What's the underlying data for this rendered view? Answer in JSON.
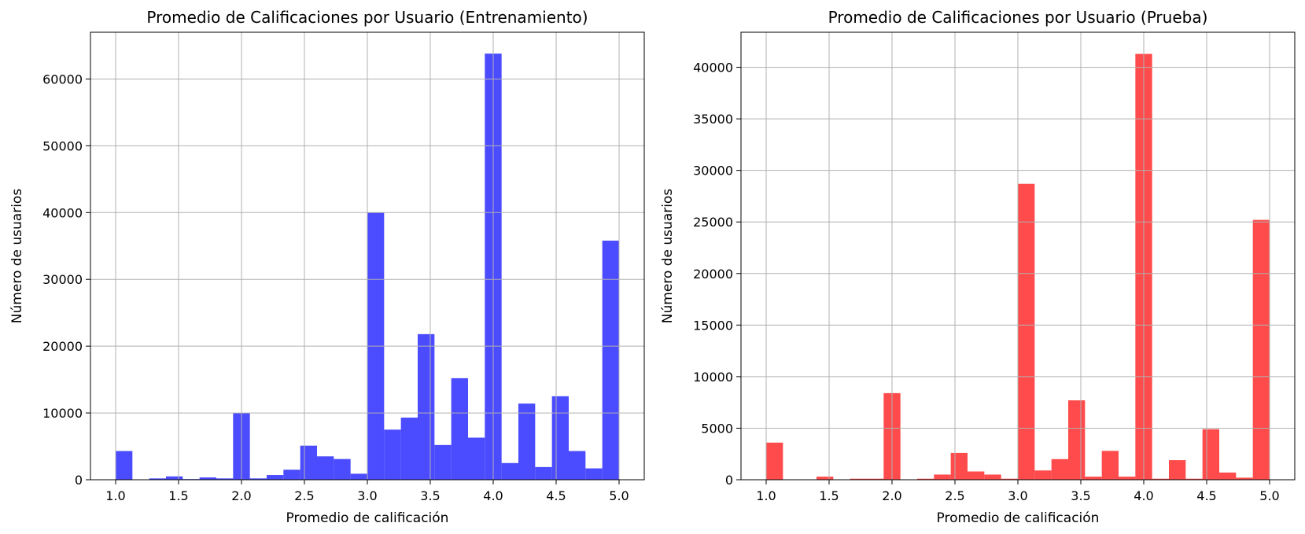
{
  "chart_data": [
    {
      "type": "bar",
      "title": "Promedio de Calificaciones por Usuario (Entrenamiento)",
      "xlabel": "Promedio de calificación",
      "ylabel": "Número de usuarios",
      "xlim": [
        0.8,
        5.2
      ],
      "ylim": [
        0,
        67000
      ],
      "xticks": [
        1.0,
        1.5,
        2.0,
        2.5,
        3.0,
        3.5,
        4.0,
        4.5,
        5.0
      ],
      "xtick_labels": [
        "1.0",
        "1.5",
        "2.0",
        "2.5",
        "3.0",
        "3.5",
        "4.0",
        "4.5",
        "5.0"
      ],
      "yticks": [
        0,
        10000,
        20000,
        30000,
        40000,
        50000,
        60000
      ],
      "ytick_labels": [
        "0",
        "10000",
        "20000",
        "30000",
        "40000",
        "50000",
        "60000"
      ],
      "grid": true,
      "color": "#4b4bff",
      "bins": {
        "start": 1.0,
        "end": 5.0,
        "count": 30
      },
      "values": [
        4300,
        0,
        200,
        500,
        100,
        350,
        200,
        10000,
        200,
        700,
        1500,
        5100,
        3500,
        3100,
        900,
        40000,
        7500,
        9300,
        21800,
        5200,
        15200,
        6300,
        63800,
        2500,
        11400,
        1900,
        12500,
        4300,
        1700,
        35800
      ]
    },
    {
      "type": "bar",
      "title": "Promedio de Calificaciones por Usuario (Prueba)",
      "xlabel": "Promedio de calificación",
      "ylabel": "Número de usuarios",
      "xlim": [
        0.8,
        5.2
      ],
      "ylim": [
        0,
        43400
      ],
      "xticks": [
        1.0,
        1.5,
        2.0,
        2.5,
        3.0,
        3.5,
        4.0,
        4.5,
        5.0
      ],
      "xtick_labels": [
        "1.0",
        "1.5",
        "2.0",
        "2.5",
        "3.0",
        "3.5",
        "4.0",
        "4.5",
        "5.0"
      ],
      "yticks": [
        0,
        5000,
        10000,
        15000,
        20000,
        25000,
        30000,
        35000,
        40000
      ],
      "ytick_labels": [
        "0",
        "5000",
        "10000",
        "15000",
        "20000",
        "25000",
        "30000",
        "35000",
        "40000"
      ],
      "grid": true,
      "color": "#ff4b4b",
      "bins": {
        "start": 1.0,
        "end": 5.0,
        "count": 30
      },
      "values": [
        3600,
        0,
        0,
        300,
        0,
        100,
        100,
        8400,
        0,
        100,
        500,
        2600,
        800,
        500,
        100,
        28700,
        900,
        2000,
        7700,
        300,
        2800,
        300,
        41300,
        100,
        1900,
        100,
        4900,
        700,
        200,
        25200
      ]
    }
  ]
}
